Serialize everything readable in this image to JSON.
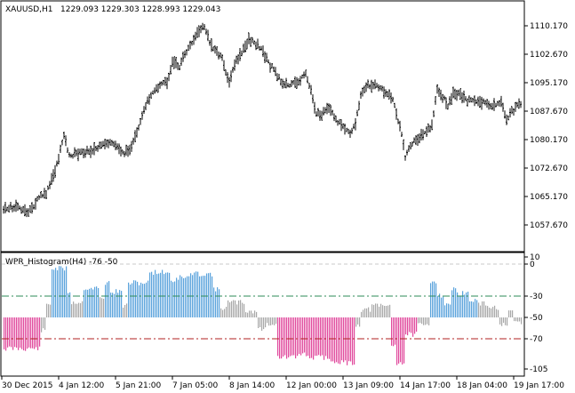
{
  "main_pane": {
    "symbol": "XAUUSD,H1",
    "ohlc": "1229.093 1229.303 1228.993 1229.043",
    "price_labels": [
      "1110.170",
      "1102.670",
      "1095.170",
      "1087.670",
      "1080.170",
      "1072.670",
      "1065.170",
      "1057.670"
    ]
  },
  "indicator_pane": {
    "label": "WPR_Histogram(H4) -76 -50",
    "scale_labels": [
      "10",
      "0",
      "-30",
      "-50",
      "-70",
      "-105"
    ],
    "levels": {
      "upper": -30,
      "lower": -70
    },
    "colors": {
      "up": "#5aa3dc",
      "neutral": "#a8a8a8",
      "down": "#e0489c",
      "upper_level": "#2e8b57",
      "lower_level": "#b22222"
    }
  },
  "time_axis": {
    "labels": [
      "30 Dec 2015",
      "4 Jan 12:00",
      "5 Jan 21:00",
      "7 Jan 05:00",
      "8 Jan 14:00",
      "12 Jan 00:00",
      "13 Jan 09:00",
      "14 Jan 17:00",
      "18 Jan 04:00",
      "19 Jan 17:00"
    ]
  }
}
